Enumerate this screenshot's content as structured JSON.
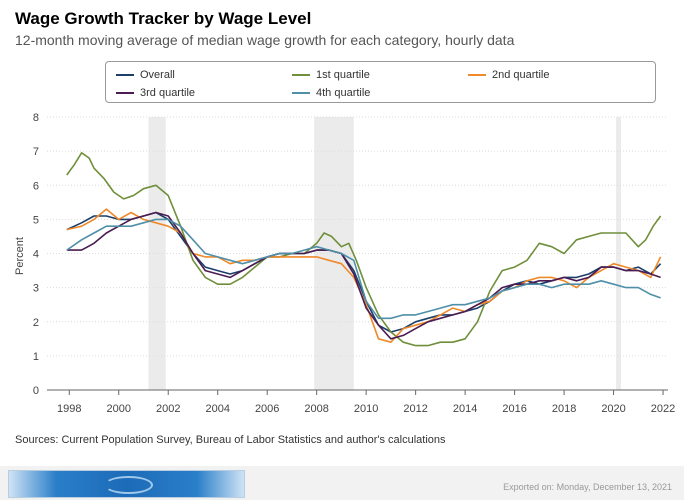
{
  "header": {
    "title": "Wage Growth Tracker by Wage Level",
    "subtitle": "12-month moving average of median wage growth for each category, hourly data"
  },
  "footer": {
    "source": "Sources: Current Population Survey, Bureau of Labor Statistics and author's calculations",
    "exported": "Exported on: Monday, December 13, 2021"
  },
  "colors": {
    "overall": "#1b3f6a",
    "q1": "#6f8f3a",
    "q2": "#f0892a",
    "q3": "#4b1c52",
    "q4": "#4f8fa8",
    "recession": "#ebebeb"
  },
  "chart_data": {
    "type": "line",
    "title": "Wage Growth Tracker by Wage Level",
    "subtitle": "12-month moving average of median wage growth for each category, hourly data",
    "xlabel": "",
    "ylabel": "Percent",
    "xlim": [
      1997.1,
      2022.2
    ],
    "ylim": [
      0,
      8
    ],
    "x_ticks": [
      "1998",
      "2000",
      "2002",
      "2004",
      "2006",
      "2008",
      "2010",
      "2012",
      "2014",
      "2016",
      "2018",
      "2020",
      "2022"
    ],
    "y_ticks": [
      "0",
      "1",
      "2",
      "3",
      "4",
      "5",
      "6",
      "7",
      "8"
    ],
    "grid": "horizontal",
    "legend_position": "top",
    "recessions": [
      [
        2001.2,
        2001.9
      ],
      [
        2007.9,
        2009.5
      ],
      [
        2020.1,
        2020.3
      ]
    ],
    "series": [
      {
        "name": "Overall",
        "key": "overall",
        "x": [
          1997.9,
          1998.5,
          1999,
          1999.5,
          2000,
          2000.5,
          2001,
          2001.5,
          2002,
          2002.5,
          2003,
          2003.5,
          2004,
          2004.5,
          2005,
          2005.5,
          2006,
          2006.5,
          2007,
          2007.5,
          2008,
          2008.5,
          2009,
          2009.5,
          2010,
          2010.5,
          2011,
          2011.5,
          2012,
          2012.5,
          2013,
          2013.5,
          2014,
          2014.5,
          2015,
          2015.5,
          2016,
          2016.5,
          2017,
          2017.5,
          2018,
          2018.5,
          2019,
          2019.5,
          2020,
          2020.5,
          2021,
          2021.5,
          2021.9
        ],
        "values": [
          4.7,
          4.9,
          5.1,
          5.1,
          5.0,
          5.0,
          5.1,
          5.2,
          5.0,
          4.5,
          4.0,
          3.6,
          3.5,
          3.4,
          3.5,
          3.7,
          3.9,
          4.0,
          4.0,
          4.0,
          4.1,
          4.1,
          4.0,
          3.5,
          2.6,
          1.9,
          1.7,
          1.8,
          2.0,
          2.1,
          2.2,
          2.2,
          2.3,
          2.4,
          2.6,
          2.9,
          3.1,
          3.2,
          3.1,
          3.2,
          3.3,
          3.3,
          3.4,
          3.6,
          3.6,
          3.5,
          3.6,
          3.4,
          3.7
        ]
      },
      {
        "name": "1st quartile",
        "key": "q1",
        "x": [
          1997.9,
          1998.2,
          1998.5,
          1998.8,
          1999,
          1999.4,
          1999.8,
          2000.2,
          2000.6,
          2001,
          2001.5,
          2002,
          2002.5,
          2003,
          2003.5,
          2004,
          2004.5,
          2005,
          2005.5,
          2006,
          2006.5,
          2007,
          2007.5,
          2008,
          2008.3,
          2008.6,
          2009,
          2009.3,
          2009.6,
          2010,
          2010.5,
          2011,
          2011.5,
          2012,
          2012.5,
          2013,
          2013.5,
          2014,
          2014.5,
          2015,
          2015.5,
          2016,
          2016.5,
          2017,
          2017.5,
          2018,
          2018.5,
          2019,
          2019.5,
          2020,
          2020.5,
          2021,
          2021.3,
          2021.6,
          2021.9
        ],
        "values": [
          6.3,
          6.6,
          6.95,
          6.8,
          6.5,
          6.2,
          5.8,
          5.6,
          5.7,
          5.9,
          6.0,
          5.7,
          4.8,
          3.8,
          3.3,
          3.1,
          3.1,
          3.3,
          3.6,
          3.9,
          3.9,
          4.0,
          4.0,
          4.3,
          4.6,
          4.5,
          4.2,
          4.3,
          3.8,
          3.0,
          2.2,
          1.7,
          1.4,
          1.3,
          1.3,
          1.4,
          1.4,
          1.5,
          2.0,
          2.9,
          3.5,
          3.6,
          3.8,
          4.3,
          4.2,
          4.0,
          4.4,
          4.5,
          4.6,
          4.6,
          4.6,
          4.2,
          4.4,
          4.8,
          5.1
        ]
      },
      {
        "name": "2nd quartile",
        "key": "q2",
        "x": [
          1997.9,
          1998.5,
          1999,
          1999.5,
          2000,
          2000.5,
          2001,
          2001.5,
          2002,
          2002.5,
          2003,
          2003.5,
          2004,
          2004.5,
          2005,
          2005.5,
          2006,
          2006.5,
          2007,
          2007.5,
          2008,
          2008.5,
          2009,
          2009.5,
          2010,
          2010.5,
          2011,
          2011.5,
          2012,
          2012.5,
          2013,
          2013.5,
          2014,
          2014.5,
          2015,
          2015.5,
          2016,
          2016.5,
          2017,
          2017.5,
          2018,
          2018.5,
          2019,
          2019.5,
          2020,
          2020.5,
          2021,
          2021.5,
          2021.9
        ],
        "values": [
          4.7,
          4.8,
          5.0,
          5.3,
          5.0,
          5.2,
          5.0,
          4.9,
          4.8,
          4.6,
          4.0,
          3.9,
          3.9,
          3.7,
          3.8,
          3.8,
          3.9,
          3.9,
          3.9,
          3.9,
          3.9,
          3.8,
          3.7,
          3.3,
          2.5,
          1.5,
          1.4,
          1.8,
          1.9,
          2.0,
          2.2,
          2.4,
          2.3,
          2.5,
          2.6,
          2.9,
          3.0,
          3.2,
          3.3,
          3.3,
          3.2,
          3.0,
          3.3,
          3.5,
          3.7,
          3.6,
          3.5,
          3.3,
          3.9
        ]
      },
      {
        "name": "3rd quartile",
        "key": "q3",
        "x": [
          1997.9,
          1998.5,
          1999,
          1999.5,
          2000,
          2000.5,
          2001,
          2001.5,
          2002,
          2002.5,
          2003,
          2003.5,
          2004,
          2004.5,
          2005,
          2005.5,
          2006,
          2006.5,
          2007,
          2007.5,
          2008,
          2008.5,
          2009,
          2009.5,
          2010,
          2010.5,
          2011,
          2011.5,
          2012,
          2012.5,
          2013,
          2013.5,
          2014,
          2014.5,
          2015,
          2015.5,
          2016,
          2016.5,
          2017,
          2017.5,
          2018,
          2018.5,
          2019,
          2019.5,
          2020,
          2020.5,
          2021,
          2021.5,
          2021.9
        ],
        "values": [
          4.1,
          4.1,
          4.3,
          4.6,
          4.8,
          5.0,
          5.1,
          5.2,
          5.1,
          4.6,
          4.0,
          3.5,
          3.4,
          3.3,
          3.5,
          3.7,
          3.9,
          4.0,
          4.0,
          4.0,
          4.1,
          4.1,
          4.0,
          3.4,
          2.4,
          1.9,
          1.5,
          1.6,
          1.8,
          2.0,
          2.1,
          2.2,
          2.3,
          2.5,
          2.7,
          3.0,
          3.1,
          3.1,
          3.2,
          3.2,
          3.3,
          3.2,
          3.3,
          3.6,
          3.6,
          3.5,
          3.5,
          3.4,
          3.3
        ]
      },
      {
        "name": "4th quartile",
        "key": "q4",
        "x": [
          1997.9,
          1998.5,
          1999,
          1999.5,
          2000,
          2000.5,
          2001,
          2001.5,
          2002,
          2002.5,
          2003,
          2003.5,
          2004,
          2004.5,
          2005,
          2005.5,
          2006,
          2006.5,
          2007,
          2007.5,
          2008,
          2008.5,
          2009,
          2009.5,
          2010,
          2010.5,
          2011,
          2011.5,
          2012,
          2012.5,
          2013,
          2013.5,
          2014,
          2014.5,
          2015,
          2015.5,
          2016,
          2016.5,
          2017,
          2017.5,
          2018,
          2018.5,
          2019,
          2019.5,
          2020,
          2020.5,
          2021,
          2021.5,
          2021.9
        ],
        "values": [
          4.1,
          4.4,
          4.6,
          4.8,
          4.8,
          4.8,
          4.9,
          5.0,
          5.0,
          4.8,
          4.4,
          4.0,
          3.9,
          3.8,
          3.7,
          3.8,
          3.9,
          4.0,
          4.0,
          4.1,
          4.2,
          4.1,
          4.0,
          3.8,
          2.6,
          2.1,
          2.1,
          2.2,
          2.2,
          2.3,
          2.4,
          2.5,
          2.5,
          2.6,
          2.7,
          2.9,
          3.0,
          3.1,
          3.1,
          3.0,
          3.1,
          3.1,
          3.1,
          3.2,
          3.1,
          3.0,
          3.0,
          2.8,
          2.7
        ]
      }
    ]
  }
}
